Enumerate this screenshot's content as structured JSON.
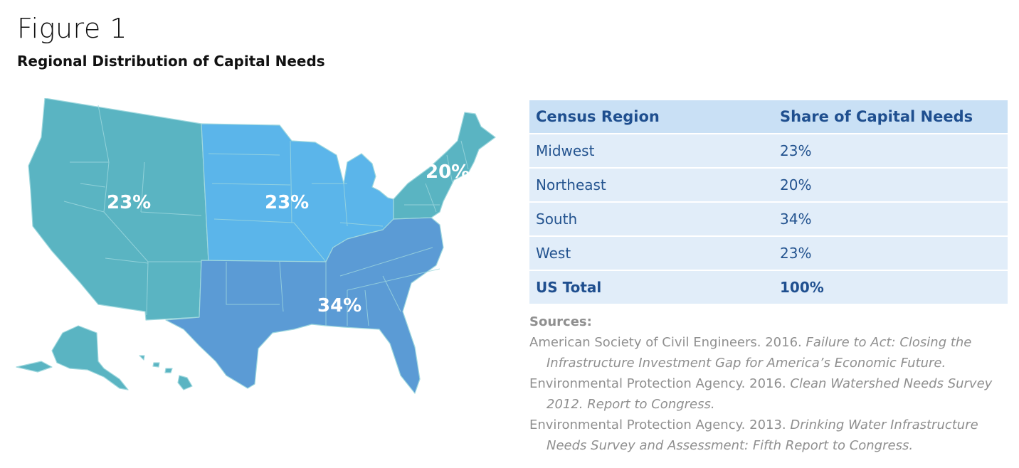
{
  "figure": {
    "label": "Figure 1",
    "title": "Regional Distribution of Capital Needs"
  },
  "map": {
    "regions": [
      {
        "name": "West",
        "value_label": "23%",
        "color": "#5ab4c2"
      },
      {
        "name": "Midwest",
        "value_label": "23%",
        "color": "#5bb5ea"
      },
      {
        "name": "Northeast",
        "value_label": "20%",
        "color": "#5ab4c2"
      },
      {
        "name": "South",
        "value_label": "34%",
        "color": "#5b9bd5"
      }
    ],
    "border_color": "#9fd8de"
  },
  "table": {
    "headers": [
      "Census Region",
      "Share of Capital Needs"
    ],
    "rows": [
      {
        "region": "Midwest",
        "share": "23%"
      },
      {
        "region": "Northeast",
        "share": "20%"
      },
      {
        "region": "South",
        "share": "34%"
      },
      {
        "region": "West",
        "share": "23%"
      }
    ],
    "total": {
      "region": "US Total",
      "share": "100%"
    },
    "header_color": "#c9e0f5",
    "row_color": "#e1edf9"
  },
  "sources": {
    "heading": "Sources:",
    "refs": [
      {
        "prefix": "American Society of Civil Engineers. 2016. ",
        "title": "Failure to Act: Closing the Infrastructure Investment Gap for America’s Economic Future."
      },
      {
        "prefix": "Environmental Protection Agency. 2016. ",
        "title": "Clean Watershed Needs Survey 2012. Report to Congress."
      },
      {
        "prefix": "Environmental Protection Agency. 2013. ",
        "title": "Drinking Water Infrastructure Needs Survey and Assessment: Fifth Report to Congress."
      }
    ]
  }
}
